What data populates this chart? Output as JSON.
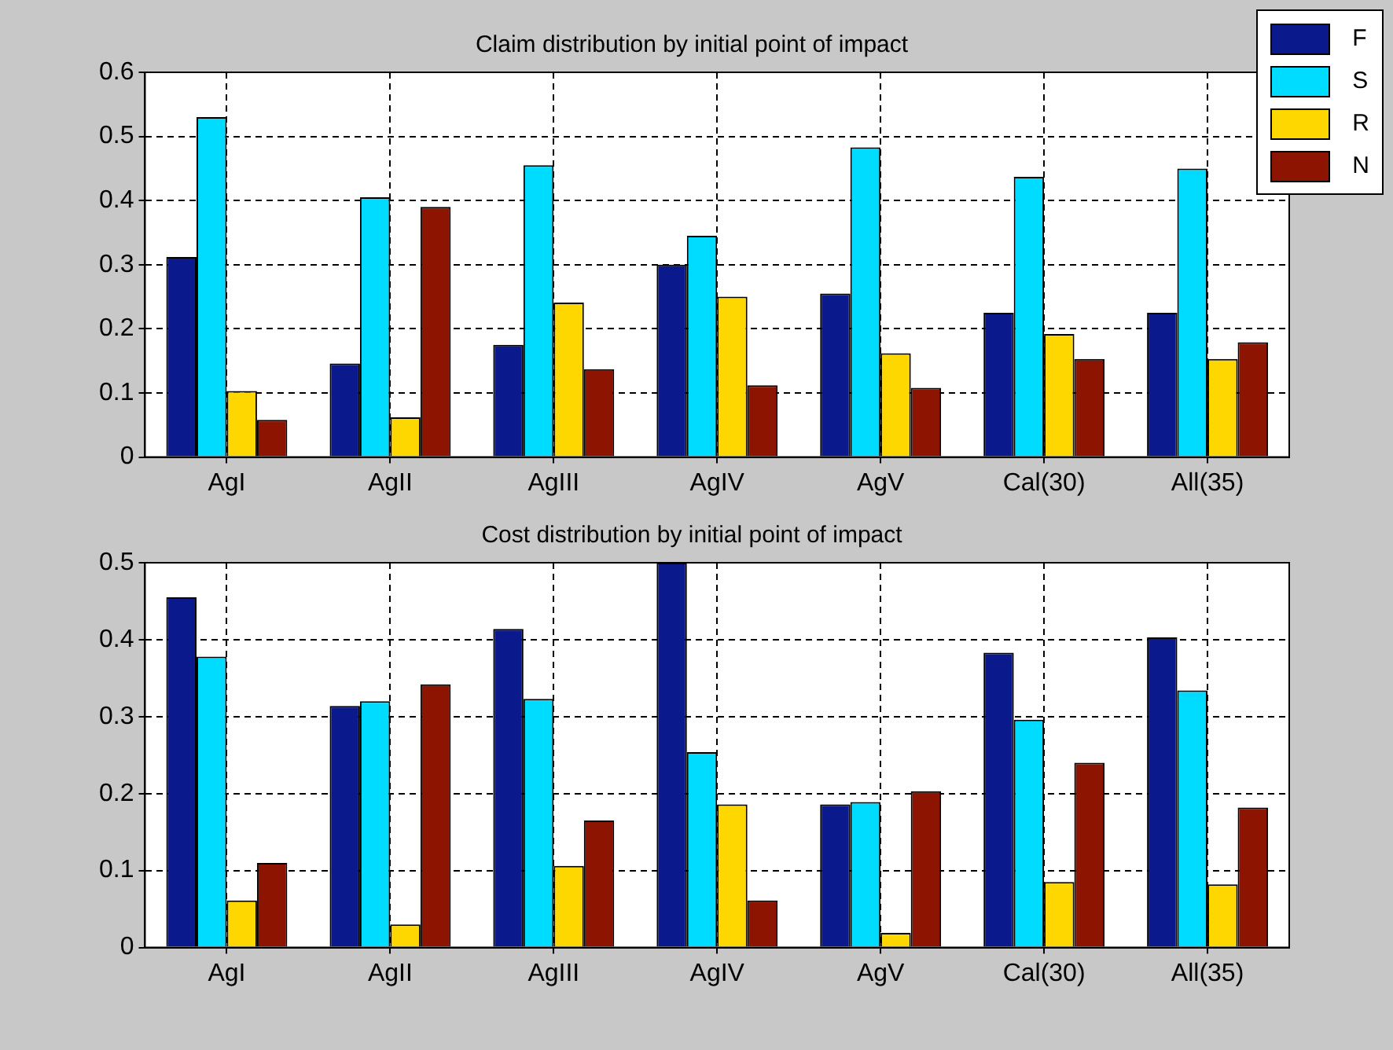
{
  "chart_data": [
    {
      "type": "bar",
      "title": "Claim distribution by initial point of impact",
      "categories": [
        "AgI",
        "AgII",
        "AgIII",
        "AgIV",
        "AgV",
        "Cal(30)",
        "All(35)"
      ],
      "series": [
        {
          "name": "F",
          "color": "#0a1a8c",
          "values": [
            0.312,
            0.146,
            0.175,
            0.3,
            0.255,
            0.225,
            0.225
          ]
        },
        {
          "name": "S",
          "color": "#00dcff",
          "values": [
            0.53,
            0.405,
            0.455,
            0.345,
            0.483,
            0.437,
            0.45
          ]
        },
        {
          "name": "R",
          "color": "#ffd700",
          "values": [
            0.103,
            0.062,
            0.241,
            0.25,
            0.162,
            0.192,
            0.153
          ]
        },
        {
          "name": "N",
          "color": "#8c1400",
          "values": [
            0.058,
            0.39,
            0.137,
            0.112,
            0.108,
            0.153,
            0.179
          ]
        }
      ],
      "ylim": [
        0,
        0.6
      ],
      "yticks": [
        0,
        0.1,
        0.2,
        0.3,
        0.4,
        0.5,
        0.6
      ],
      "grid": true,
      "legend": "top right"
    },
    {
      "type": "bar",
      "title": "Cost distribution by initial point of impact",
      "categories": [
        "AgI",
        "AgII",
        "AgIII",
        "AgIV",
        "AgV",
        "Cal(30)",
        "All(35)"
      ],
      "series": [
        {
          "color": "#0a1a8c",
          "values": [
            0.455,
            0.314,
            0.414,
            0.5,
            0.186,
            0.383,
            0.403
          ]
        },
        {
          "color": "#00dcff",
          "values": [
            0.378,
            0.32,
            0.323,
            0.254,
            0.189,
            0.296,
            0.334
          ]
        },
        {
          "color": "#ffd700",
          "values": [
            0.061,
            0.03,
            0.106,
            0.186,
            0.019,
            0.085,
            0.082
          ]
        },
        {
          "color": "#8c1400",
          "values": [
            0.11,
            0.342,
            0.165,
            0.061,
            0.203,
            0.24,
            0.182
          ]
        }
      ],
      "ylim": [
        0,
        0.5
      ],
      "yticks": [
        0,
        0.1,
        0.2,
        0.3,
        0.4,
        0.5
      ],
      "grid": true
    }
  ]
}
